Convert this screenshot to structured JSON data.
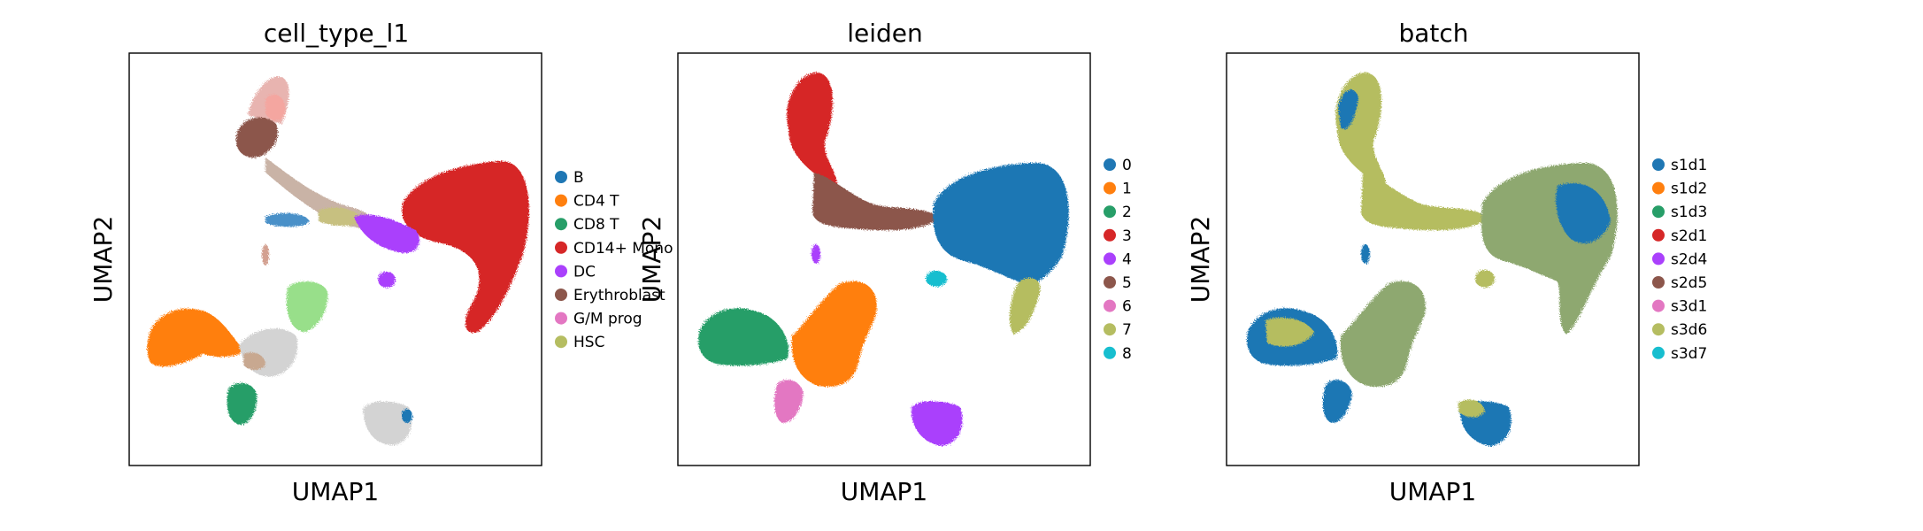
{
  "chart_data": [
    {
      "type": "scatter",
      "title": "cell_type_l1",
      "xlabel": "UMAP1",
      "ylabel": "UMAP2",
      "grid": false,
      "legend_position": "right",
      "legend": [
        {
          "label": "B",
          "color": "#1f77b4"
        },
        {
          "label": "CD4 T",
          "color": "#ff7f0e"
        },
        {
          "label": "CD8 T",
          "color": "#279e68"
        },
        {
          "label": "CD14+ Mono",
          "color": "#d62728"
        },
        {
          "label": "DC",
          "color": "#aa40fc"
        },
        {
          "label": "Erythroblast",
          "color": "#8c564b"
        },
        {
          "label": "G/M prog",
          "color": "#e377c2"
        },
        {
          "label": "HSC",
          "color": "#b5bd61"
        }
      ]
    },
    {
      "type": "scatter",
      "title": "leiden",
      "xlabel": "UMAP1",
      "ylabel": "UMAP2",
      "grid": false,
      "legend_position": "right",
      "legend": [
        {
          "label": "0",
          "color": "#1f77b4"
        },
        {
          "label": "1",
          "color": "#ff7f0e"
        },
        {
          "label": "2",
          "color": "#279e68"
        },
        {
          "label": "3",
          "color": "#d62728"
        },
        {
          "label": "4",
          "color": "#aa40fc"
        },
        {
          "label": "5",
          "color": "#8c564b"
        },
        {
          "label": "6",
          "color": "#e377c2"
        },
        {
          "label": "7",
          "color": "#b5bd61"
        },
        {
          "label": "8",
          "color": "#17becf"
        }
      ]
    },
    {
      "type": "scatter",
      "title": "batch",
      "xlabel": "UMAP1",
      "ylabel": "UMAP2",
      "grid": false,
      "legend_position": "right",
      "legend": [
        {
          "label": "s1d1",
          "color": "#1f77b4"
        },
        {
          "label": "s1d2",
          "color": "#ff7f0e"
        },
        {
          "label": "s1d3",
          "color": "#279e68"
        },
        {
          "label": "s2d1",
          "color": "#d62728"
        },
        {
          "label": "s2d4",
          "color": "#aa40fc"
        },
        {
          "label": "s2d5",
          "color": "#8c564b"
        },
        {
          "label": "s3d1",
          "color": "#e377c2"
        },
        {
          "label": "s3d6",
          "color": "#b5bd61"
        },
        {
          "label": "s3d7",
          "color": "#17becf"
        }
      ]
    }
  ]
}
